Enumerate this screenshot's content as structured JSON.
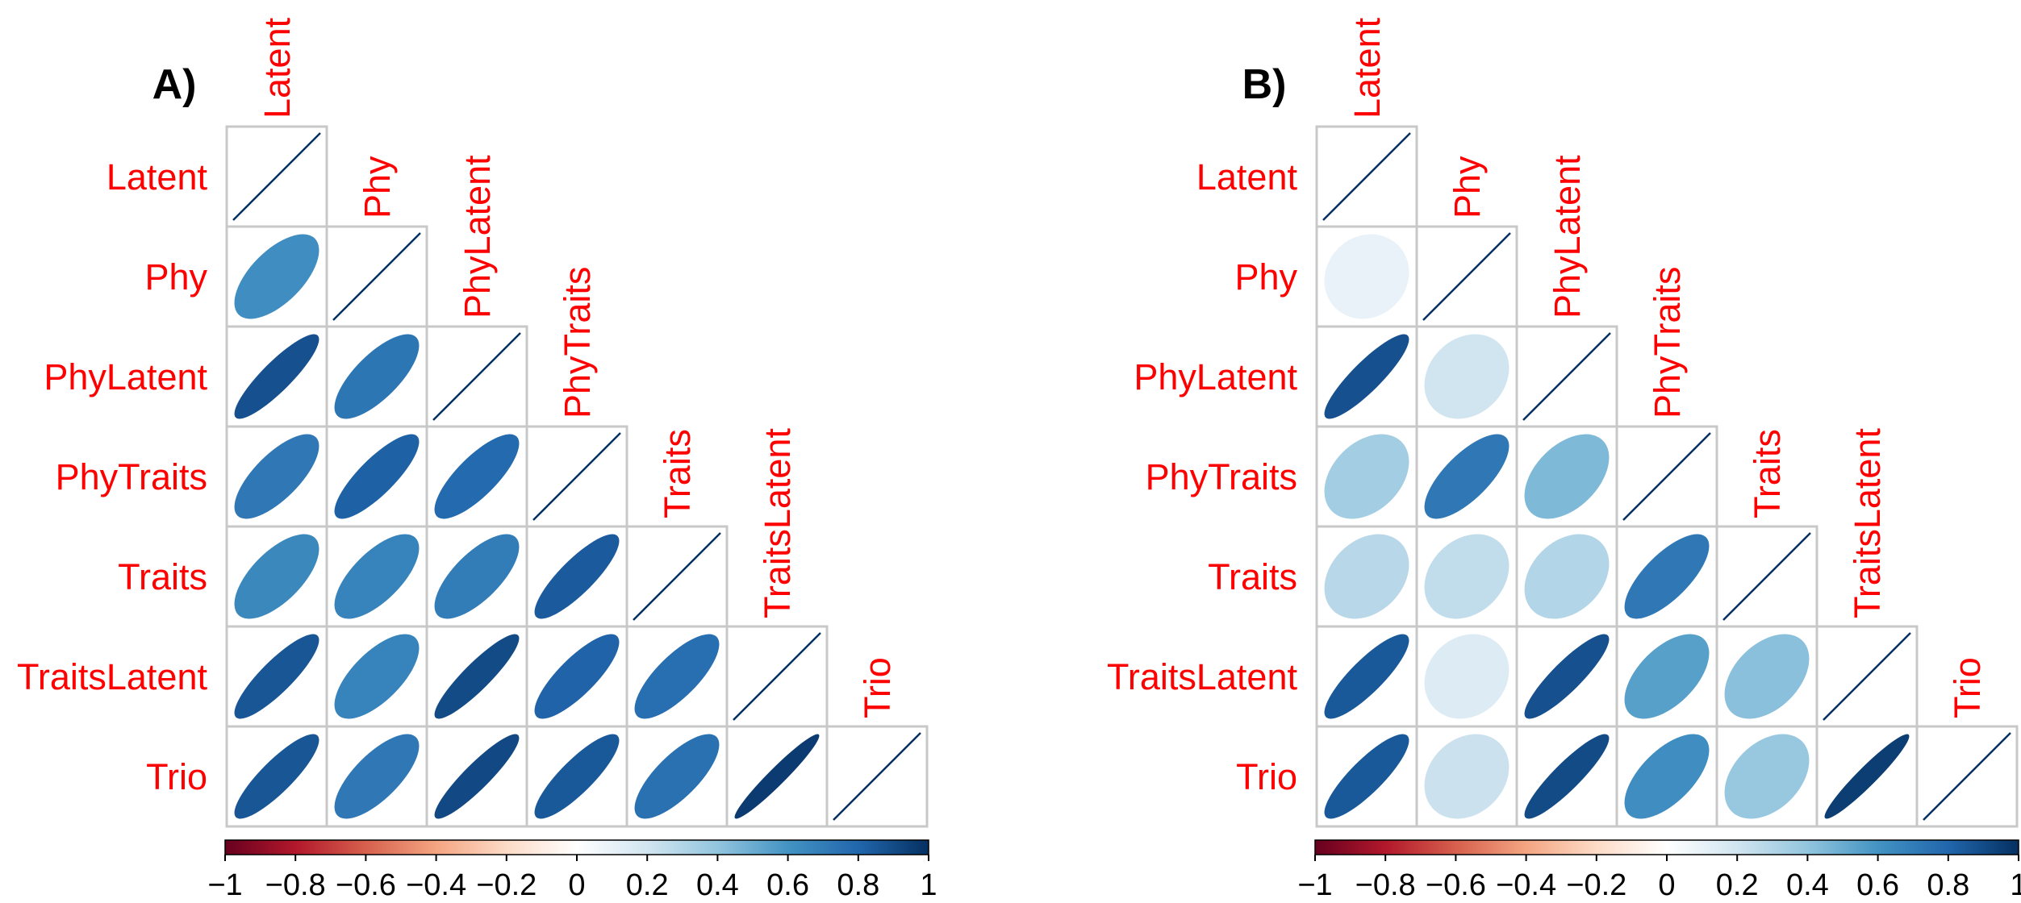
{
  "chart_data": [
    {
      "type": "heatmap",
      "panel_label": "A)",
      "variables": [
        "Latent",
        "Phy",
        "PhyLatent",
        "PhyTraits",
        "Traits",
        "TraitsLatent",
        "Trio"
      ],
      "layout": "lower-triangle correlation ellipses",
      "values": [
        [
          1.0
        ],
        [
          0.62,
          1.0
        ],
        [
          0.88,
          0.73,
          1.0
        ],
        [
          0.72,
          0.82,
          0.78,
          1.0
        ],
        [
          0.65,
          0.67,
          0.7,
          0.84,
          1.0
        ],
        [
          0.86,
          0.67,
          0.9,
          0.81,
          0.76,
          1.0
        ],
        [
          0.86,
          0.72,
          0.91,
          0.85,
          0.75,
          0.96,
          1.0
        ]
      ],
      "colorbar": {
        "range": [
          -1,
          1
        ],
        "ticks": [
          "−1",
          "−0.8",
          "−0.6",
          "−0.4",
          "−0.2",
          "0",
          "0.2",
          "0.4",
          "0.6",
          "0.8",
          "1"
        ],
        "colors": [
          "#67001f",
          "#b2182b",
          "#d6604d",
          "#f4a582",
          "#fddbc7",
          "#ffffff",
          "#d1e5f0",
          "#92c5de",
          "#4393c3",
          "#2166ac",
          "#053061"
        ]
      }
    },
    {
      "type": "heatmap",
      "panel_label": "B)",
      "variables": [
        "Latent",
        "Phy",
        "PhyLatent",
        "PhyTraits",
        "Traits",
        "TraitsLatent",
        "Trio"
      ],
      "layout": "lower-triangle correlation ellipses",
      "values": [
        [
          1.0
        ],
        [
          0.1,
          1.0
        ],
        [
          0.88,
          0.2,
          1.0
        ],
        [
          0.35,
          0.72,
          0.45,
          1.0
        ],
        [
          0.28,
          0.25,
          0.3,
          0.72,
          1.0
        ],
        [
          0.85,
          0.15,
          0.88,
          0.55,
          0.42,
          1.0
        ],
        [
          0.85,
          0.22,
          0.9,
          0.62,
          0.38,
          0.95,
          1.0
        ]
      ],
      "colorbar": {
        "range": [
          -1,
          1
        ],
        "ticks": [
          "−1",
          "−0.8",
          "−0.6",
          "−0.4",
          "−0.2",
          "0",
          "0.2",
          "0.4",
          "0.6",
          "0.8",
          "1"
        ],
        "colors": [
          "#67001f",
          "#b2182b",
          "#d6604d",
          "#f4a582",
          "#fddbc7",
          "#ffffff",
          "#d1e5f0",
          "#92c5de",
          "#4393c3",
          "#2166ac",
          "#053061"
        ]
      }
    }
  ]
}
